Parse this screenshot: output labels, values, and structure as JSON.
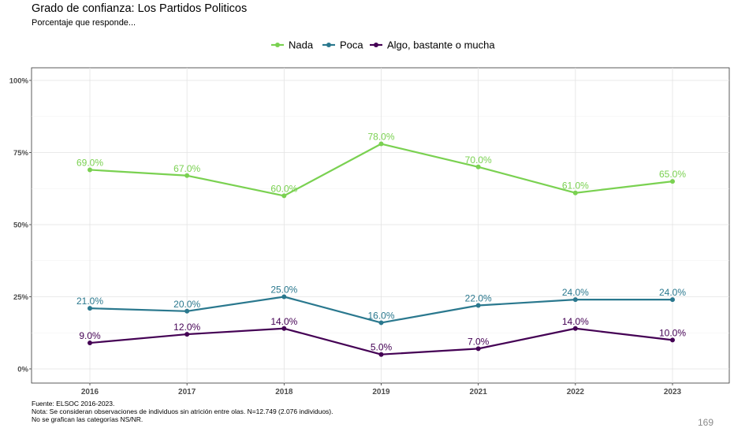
{
  "title": "Grado de confianza: Los Partidos Politicos",
  "subtitle": "Porcentaje que responde...",
  "notes": [
    "Fuente: ELSOC 2016-2023.",
    "Nota: Se consideran observaciones de individuos sin atrición entre olas. N=12.749 (2.076 individuos).",
    "No se grafican las categorías NS/NR."
  ],
  "page_number": "169",
  "chart_data": {
    "type": "line",
    "categories": [
      "2016",
      "2017",
      "2018",
      "2019",
      "2021",
      "2022",
      "2023"
    ],
    "ylim": [
      0,
      1
    ],
    "yticks": [
      {
        "value": 0,
        "label": "0%"
      },
      {
        "value": 0.25,
        "label": "25%"
      },
      {
        "value": 0.5,
        "label": "50%"
      },
      {
        "value": 0.75,
        "label": "75%"
      },
      {
        "value": 1,
        "label": "100%"
      }
    ],
    "grid": true,
    "legend_position": "top",
    "series": [
      {
        "name": "Nada",
        "color": "#7ad151",
        "values": [
          0.69,
          0.67,
          0.6,
          0.78,
          0.7,
          0.61,
          0.65
        ],
        "labels": [
          "69.0%",
          "67.0%",
          "60.0%",
          "78.0%",
          "70.0%",
          "61.0%",
          "65.0%"
        ]
      },
      {
        "name": "Poca",
        "color": "#2a788e",
        "values": [
          0.21,
          0.2,
          0.25,
          0.16,
          0.22,
          0.24,
          0.24
        ],
        "labels": [
          "21.0%",
          "20.0%",
          "25.0%",
          "16.0%",
          "22.0%",
          "24.0%",
          "24.0%"
        ]
      },
      {
        "name": "Algo, bastante o mucha",
        "color": "#440154",
        "values": [
          0.09,
          0.12,
          0.14,
          0.05,
          0.07,
          0.14,
          0.1
        ],
        "labels": [
          "9.0%",
          "12.0%",
          "14.0%",
          "5.0%",
          "7.0%",
          "14.0%",
          "10.0%"
        ]
      }
    ]
  }
}
